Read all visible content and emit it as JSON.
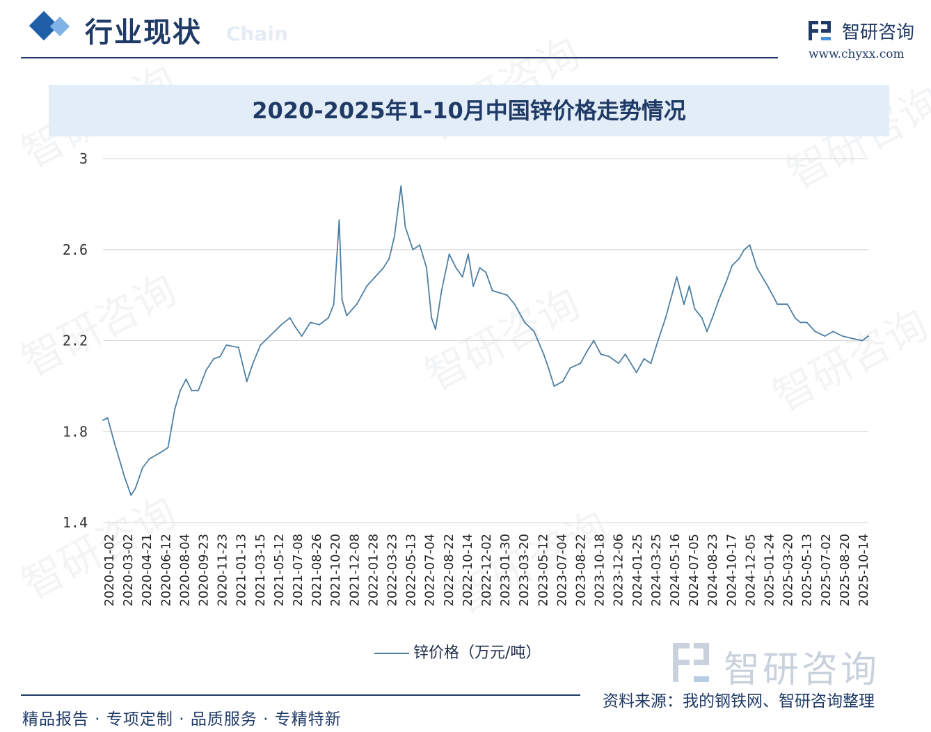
{
  "header": {
    "section_title": "行业现状",
    "section_subtitle": "Chain",
    "brand_name": "智研咨询",
    "brand_url": "www.chyxx.com"
  },
  "chart_data": {
    "type": "line",
    "title": "2020-2025年1-10月中国锌价格走势情况",
    "xlabel": "",
    "ylabel": "",
    "ylim": [
      1.4,
      3
    ],
    "y_ticks": [
      "3",
      "2.6",
      "2.2",
      "1.8",
      "1.4"
    ],
    "grid": "horizontal",
    "legend_position": "bottom",
    "x_tick_labels": [
      "2020-01-02",
      "2020-03-02",
      "2020-04-21",
      "2020-06-12",
      "2020-08-04",
      "2020-09-23",
      "2020-11-23",
      "2021-01-13",
      "2021-03-15",
      "2021-05-12",
      "2021-07-08",
      "2021-08-26",
      "2021-10-20",
      "2021-12-08",
      "2022-01-28",
      "2022-03-23",
      "2022-05-13",
      "2022-07-04",
      "2022-08-22",
      "2022-10-14",
      "2022-12-02",
      "2023-01-30",
      "2023-03-20",
      "2023-05-12",
      "2023-07-04",
      "2023-08-22",
      "2023-10-18",
      "2023-12-06",
      "2024-01-25",
      "2024-03-25",
      "2024-05-16",
      "2024-07-05",
      "2024-08-23",
      "2024-10-17",
      "2024-12-05",
      "2025-01-24",
      "2025-03-20",
      "2025-05-13",
      "2025-07-02",
      "2025-08-20",
      "2025-10-14"
    ],
    "series": [
      {
        "name": "锌价格（万元/吨）",
        "color": "#4d7fa3",
        "x": [
          "2020-01-02",
          "2020-01-15",
          "2020-02-03",
          "2020-02-20",
          "2020-03-02",
          "2020-03-20",
          "2020-04-01",
          "2020-04-21",
          "2020-05-10",
          "2020-06-12",
          "2020-07-01",
          "2020-07-20",
          "2020-08-04",
          "2020-08-20",
          "2020-09-05",
          "2020-09-23",
          "2020-10-15",
          "2020-11-05",
          "2020-11-23",
          "2020-12-10",
          "2021-01-13",
          "2021-02-05",
          "2021-02-22",
          "2021-03-15",
          "2021-04-10",
          "2021-05-12",
          "2021-06-05",
          "2021-06-20",
          "2021-07-08",
          "2021-08-01",
          "2021-08-26",
          "2021-09-20",
          "2021-10-05",
          "2021-10-20",
          "2021-10-28",
          "2021-11-10",
          "2021-12-08",
          "2022-01-05",
          "2022-01-28",
          "2022-02-20",
          "2022-03-08",
          "2022-03-23",
          "2022-04-10",
          "2022-04-22",
          "2022-05-13",
          "2022-06-01",
          "2022-06-20",
          "2022-07-04",
          "2022-07-15",
          "2022-08-01",
          "2022-08-22",
          "2022-09-10",
          "2022-09-28",
          "2022-10-14",
          "2022-10-28",
          "2022-11-15",
          "2022-12-02",
          "2022-12-20",
          "2023-01-30",
          "2023-02-20",
          "2023-03-20",
          "2023-04-15",
          "2023-05-12",
          "2023-05-25",
          "2023-06-10",
          "2023-07-04",
          "2023-07-25",
          "2023-08-22",
          "2023-09-12",
          "2023-09-28",
          "2023-10-18",
          "2023-11-10",
          "2023-12-06",
          "2023-12-25",
          "2024-01-25",
          "2024-02-15",
          "2024-03-05",
          "2024-03-25",
          "2024-04-15",
          "2024-05-16",
          "2024-06-05",
          "2024-06-20",
          "2024-07-05",
          "2024-07-25",
          "2024-08-08",
          "2024-08-23",
          "2024-09-10",
          "2024-10-01",
          "2024-10-17",
          "2024-11-05",
          "2024-11-20",
          "2024-12-05",
          "2024-12-25",
          "2025-01-24",
          "2025-02-20",
          "2025-03-20",
          "2025-04-10",
          "2025-04-25",
          "2025-05-13",
          "2025-06-05",
          "2025-07-02",
          "2025-07-25",
          "2025-08-20",
          "2025-09-15",
          "2025-10-14",
          "2025-10-31"
        ],
        "values": [
          1.85,
          1.86,
          1.75,
          1.66,
          1.6,
          1.52,
          1.55,
          1.64,
          1.68,
          1.71,
          1.73,
          1.9,
          1.98,
          2.03,
          1.98,
          1.98,
          2.07,
          2.12,
          2.13,
          2.18,
          2.17,
          2.02,
          2.1,
          2.18,
          2.22,
          2.27,
          2.3,
          2.26,
          2.22,
          2.28,
          2.27,
          2.3,
          2.36,
          2.73,
          2.38,
          2.31,
          2.36,
          2.44,
          2.48,
          2.52,
          2.56,
          2.66,
          2.88,
          2.7,
          2.6,
          2.62,
          2.52,
          2.3,
          2.25,
          2.42,
          2.58,
          2.52,
          2.48,
          2.58,
          2.44,
          2.52,
          2.5,
          2.42,
          2.4,
          2.36,
          2.28,
          2.24,
          2.14,
          2.08,
          2.0,
          2.02,
          2.08,
          2.1,
          2.16,
          2.2,
          2.14,
          2.13,
          2.1,
          2.14,
          2.06,
          2.12,
          2.1,
          2.2,
          2.3,
          2.48,
          2.36,
          2.44,
          2.34,
          2.3,
          2.24,
          2.3,
          2.38,
          2.46,
          2.53,
          2.56,
          2.6,
          2.62,
          2.52,
          2.44,
          2.36,
          2.36,
          2.3,
          2.28,
          2.28,
          2.24,
          2.22,
          2.24,
          2.22,
          2.21,
          2.2,
          2.22
        ]
      }
    ]
  },
  "legend": {
    "label": "锌价格（万元/吨）"
  },
  "watermark": {
    "text": "智研咨询"
  },
  "footer": {
    "slogan": "精品报告 · 专项定制 · 品质服务 · 专精特新",
    "source": "资料来源：我的钢铁网、智研咨询整理"
  }
}
